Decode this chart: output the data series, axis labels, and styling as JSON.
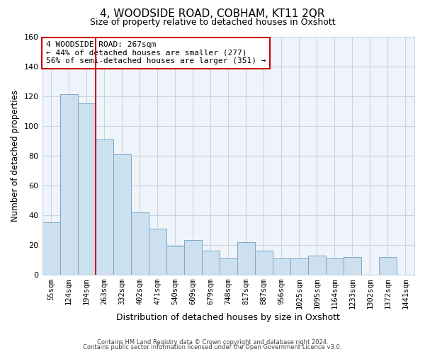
{
  "title": "4, WOODSIDE ROAD, COBHAM, KT11 2QR",
  "subtitle": "Size of property relative to detached houses in Oxshott",
  "xlabel": "Distribution of detached houses by size in Oxshott",
  "ylabel": "Number of detached properties",
  "bar_labels": [
    "55sqm",
    "124sqm",
    "194sqm",
    "263sqm",
    "332sqm",
    "402sqm",
    "471sqm",
    "540sqm",
    "609sqm",
    "679sqm",
    "748sqm",
    "817sqm",
    "887sqm",
    "956sqm",
    "1025sqm",
    "1095sqm",
    "1164sqm",
    "1233sqm",
    "1302sqm",
    "1372sqm",
    "1441sqm"
  ],
  "bar_heights": [
    35,
    121,
    115,
    91,
    81,
    42,
    31,
    19,
    23,
    16,
    11,
    22,
    16,
    11,
    11,
    13,
    11,
    12,
    0,
    12,
    0
  ],
  "bar_color": "#cce0f0",
  "bar_edge_color": "#7aaac8",
  "vline_x": 3,
  "vline_color": "#cc0000",
  "annotation_text": "4 WOODSIDE ROAD: 267sqm\n← 44% of detached houses are smaller (277)\n56% of semi-detached houses are larger (351) →",
  "annotation_box_color": "white",
  "annotation_box_edge": "#cc0000",
  "ylim": [
    0,
    160
  ],
  "yticks": [
    0,
    20,
    40,
    60,
    80,
    100,
    120,
    140,
    160
  ],
  "footer_line1": "Contains HM Land Registry data © Crown copyright and database right 2024.",
  "footer_line2": "Contains public sector information licensed under the Open Government Licence v3.0.",
  "background_color": "#ffffff",
  "grid_color": "#c8d4e0",
  "plot_bg_color": "#eef4fa"
}
